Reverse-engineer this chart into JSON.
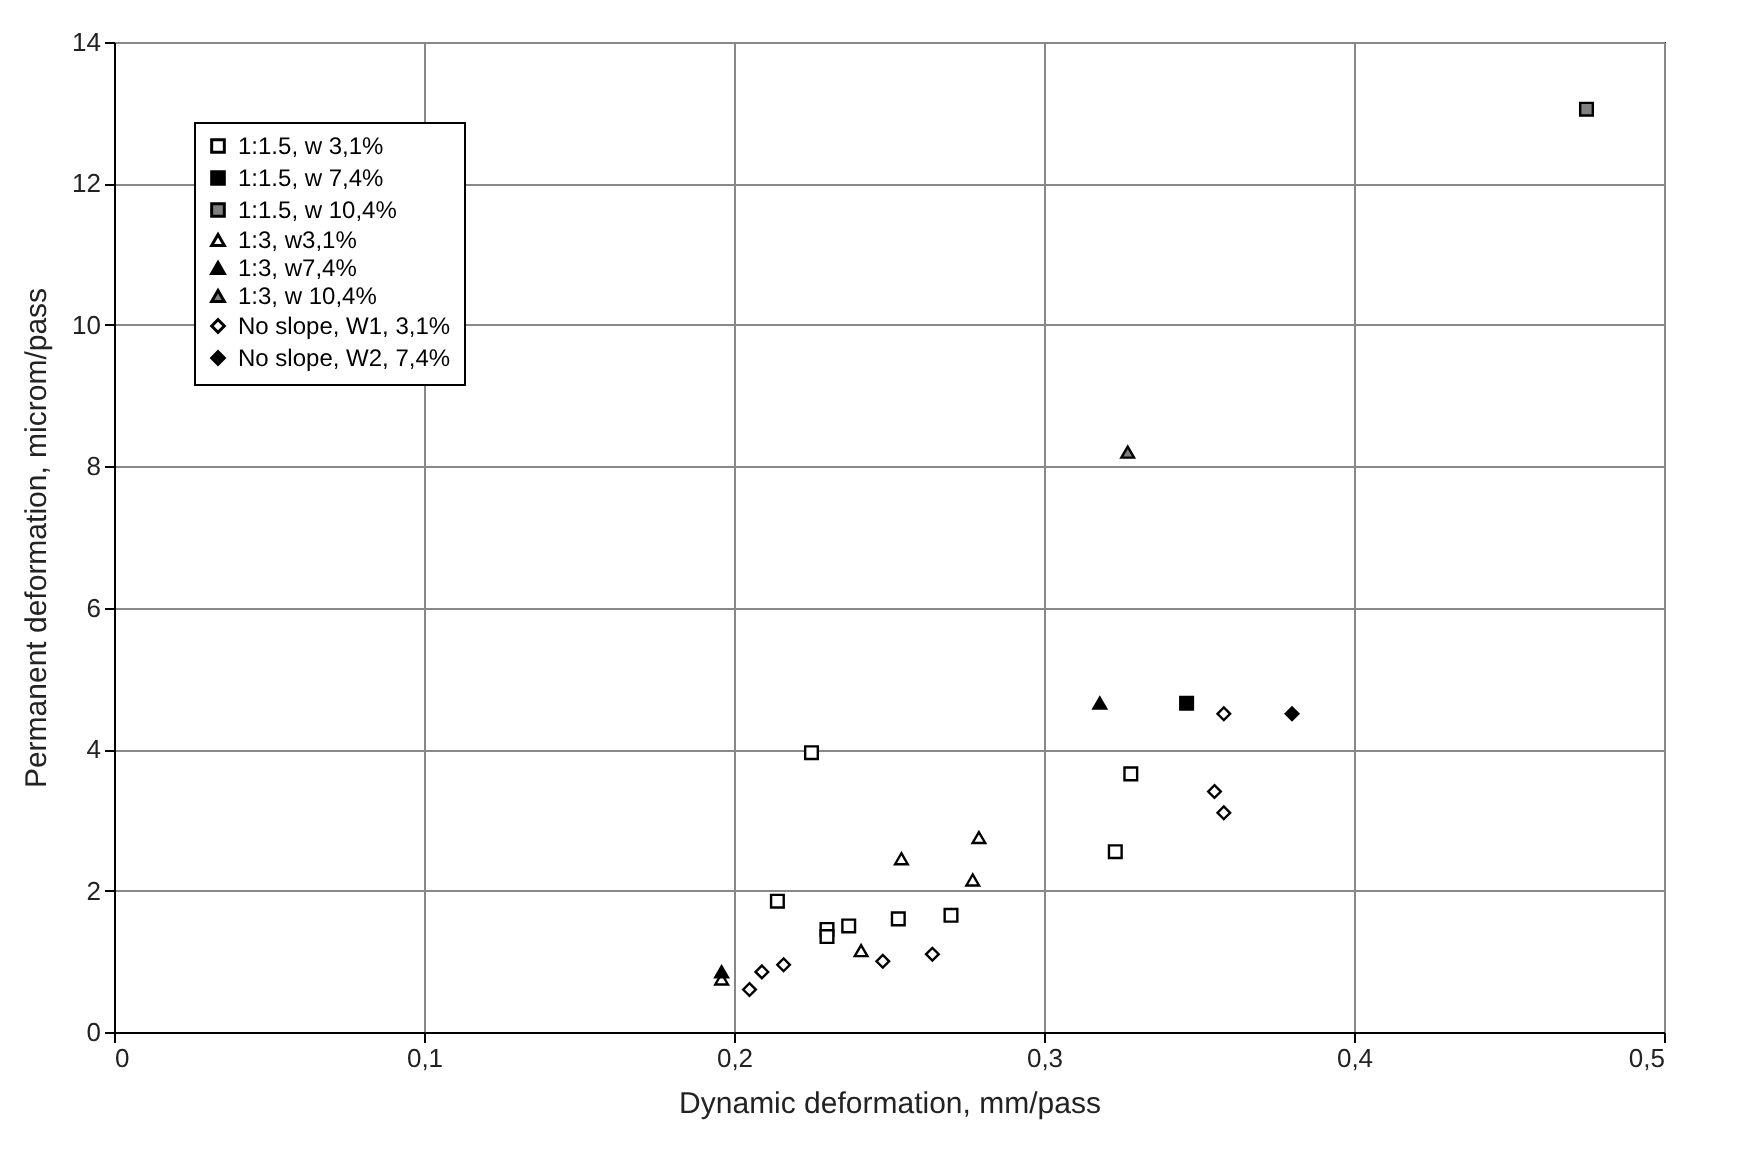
{
  "chart_data": {
    "type": "scatter",
    "xlabel": "Dynamic deformation, mm/pass",
    "ylabel": "Permanent deformation, microm/pass",
    "xlim": [
      0,
      0.5
    ],
    "xticks": [
      0,
      {
        "value": 0.1,
        "label": "0,1"
      },
      {
        "value": 0.2,
        "label": "0,2"
      },
      {
        "value": 0.3,
        "label": "0,3"
      },
      {
        "value": 0.4,
        "label": "0,4"
      },
      {
        "value": 0.5,
        "label": "0,5"
      }
    ],
    "ylim": [
      0,
      14
    ],
    "yticks": [
      0,
      2,
      4,
      6,
      8,
      10,
      12,
      14
    ],
    "grid": true,
    "legend": "top left",
    "series": [
      {
        "name": "1:1.5, w 3,1%",
        "marker": "square",
        "color": "#ffffff",
        "x": [
          0.225,
          0.214,
          0.23,
          0.23,
          0.237,
          0.253,
          0.27,
          0.323,
          0.328
        ],
        "values": [
          3.95,
          1.85,
          1.45,
          1.35,
          1.5,
          1.6,
          1.65,
          2.55,
          3.65
        ]
      },
      {
        "name": "1:1.5, w 7,4%",
        "marker": "square",
        "color": "#000000",
        "x": [
          0.346
        ],
        "values": [
          4.65
        ]
      },
      {
        "name": "1:1.5, w 10,4%",
        "marker": "square",
        "color": "#808080",
        "x": [
          0.475
        ],
        "values": [
          13.05
        ]
      },
      {
        "name": "1:3, w3,1%",
        "marker": "triangle",
        "color": "#ffffff",
        "x": [
          0.196,
          0.241,
          0.254,
          0.277,
          0.279
        ],
        "values": [
          0.75,
          1.15,
          2.45,
          2.15,
          2.75
        ]
      },
      {
        "name": "1:3, w7,4%",
        "marker": "triangle",
        "color": "#000000",
        "x": [
          0.196,
          0.318
        ],
        "values": [
          0.85,
          4.65
        ]
      },
      {
        "name": "1:3, w 10,4%",
        "marker": "triangle",
        "color": "#808080",
        "x": [
          0.327
        ],
        "values": [
          8.2
        ]
      },
      {
        "name": "No slope, W1, 3,1%",
        "marker": "diamond",
        "color": "#ffffff",
        "x": [
          0.205,
          0.209,
          0.216,
          0.248,
          0.264,
          0.355,
          0.358,
          0.358
        ],
        "values": [
          0.6,
          0.85,
          0.95,
          1.0,
          1.1,
          3.4,
          3.1,
          4.5
        ]
      },
      {
        "name": "No slope, W2, 7,4%",
        "marker": "diamond",
        "color": "#000000",
        "x": [
          0.38
        ],
        "values": [
          4.5
        ]
      }
    ]
  }
}
